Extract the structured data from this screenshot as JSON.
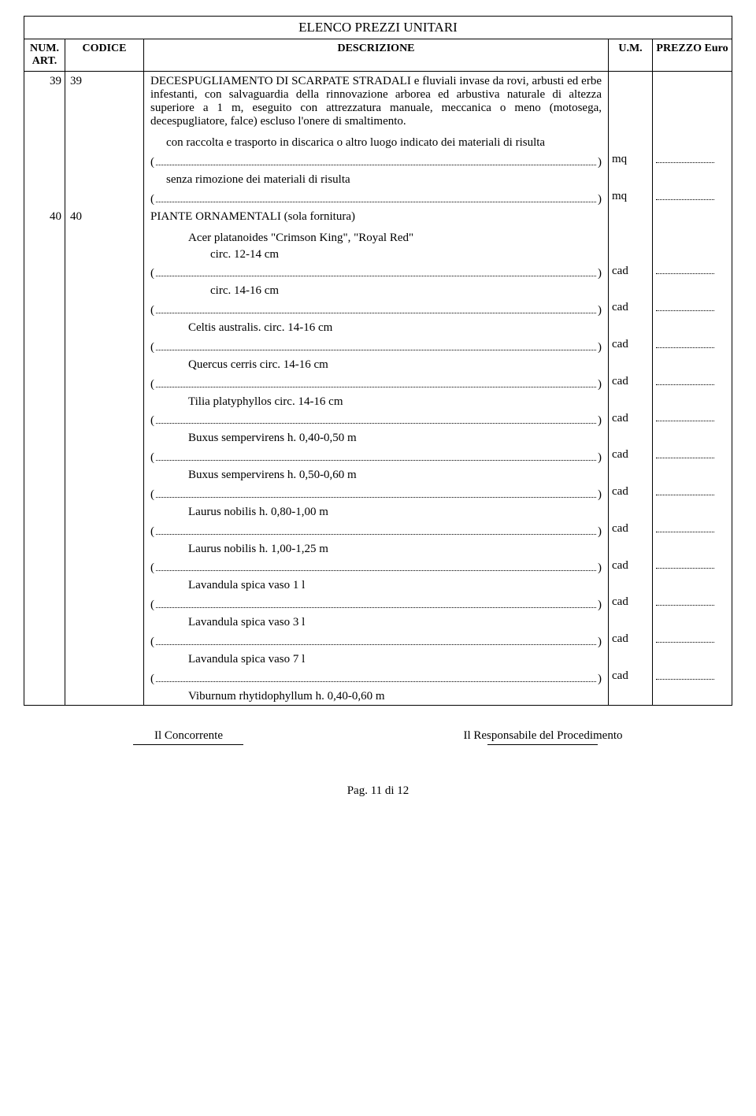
{
  "title": "ELENCO PREZZI UNITARI",
  "headers": {
    "num": "NUM. ART.",
    "code": "CODICE",
    "desc": "DESCRIZIONE",
    "um": "U.M.",
    "prezzo": "PREZZO Euro"
  },
  "rows": [
    {
      "num": "39",
      "code": "39",
      "desc_main": "DECESPUGLIAMENTO DI SCARPATE STRADALI e fluviali invase da rovi, arbusti ed erbe infestanti, con salvaguardia della rinnovazione arborea ed arbustiva naturale di altezza superiore a 1 m, eseguito con attrezzatura manuale, meccanica o meno (motosega, decespugliatore, falce) escluso l'onere di smaltimento.",
      "subitems": [
        {
          "text": "con raccolta e trasporto in discarica o altro luogo indicato dei materiali di risulta",
          "indent": 1,
          "um": "mq"
        },
        {
          "text": "senza rimozione dei materiali di risulta",
          "indent": 1,
          "um": "mq"
        }
      ]
    },
    {
      "num": "40",
      "code": "40",
      "desc_main": "PIANTE ORNAMENTALI (sola fornitura)",
      "subgroups": [
        {
          "heading": "Acer platanoides \"Crimson King\", \"Royal Red\"",
          "heading_indent": 2,
          "items": [
            {
              "text": "circ. 12-14 cm",
              "indent": 3,
              "um": "cad"
            },
            {
              "text": "circ. 14-16 cm",
              "indent": 3,
              "um": "cad"
            }
          ]
        }
      ],
      "flatitems": [
        {
          "text": "Celtis australis. circ. 14-16 cm",
          "indent": 2,
          "um": "cad"
        },
        {
          "text": " Quercus cerris circ. 14-16 cm",
          "indent": 2,
          "um": "cad"
        },
        {
          "text": "Tilia platyphyllos circ. 14-16 cm",
          "indent": 2,
          "um": "cad"
        },
        {
          "text": "Buxus sempervirens h. 0,40-0,50 m",
          "indent": 2,
          "um": "cad"
        },
        {
          "text": "Buxus sempervirens h. 0,50-0,60 m",
          "indent": 2,
          "um": "cad"
        },
        {
          "text": "Laurus nobilis h. 0,80-1,00 m",
          "indent": 2,
          "um": "cad"
        },
        {
          "text": "Laurus nobilis h. 1,00-1,25 m",
          "indent": 2,
          "um": "cad"
        },
        {
          "text": "Lavandula spica vaso 1 l",
          "indent": 2,
          "um": "cad"
        },
        {
          "text": "Lavandula spica vaso 3 l",
          "indent": 2,
          "um": "cad"
        },
        {
          "text": "Lavandula spica vaso 7 l",
          "indent": 2,
          "um": "cad"
        },
        {
          "text": "Viburnum rhytidophyllum h. 0,40-0,60 m",
          "indent": 2,
          "um": "",
          "no_line": true
        }
      ]
    }
  ],
  "footer": {
    "left": "Il Concorrente",
    "right": "Il Responsabile del Procedimento"
  },
  "page": "Pag. 11 di 12"
}
